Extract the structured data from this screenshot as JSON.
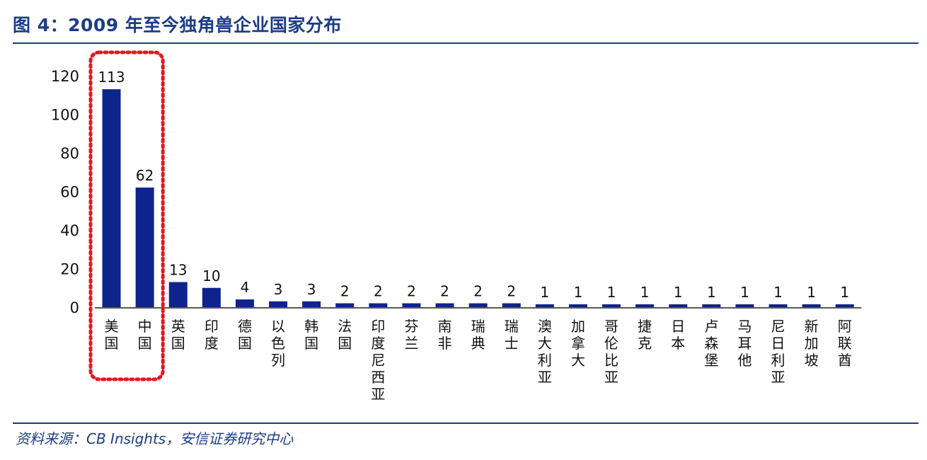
{
  "header": {
    "title": "图 4：2009 年至今独角兽企业国家分布"
  },
  "footer": {
    "source": "资料来源：CB Insights，安信证券研究中心"
  },
  "colors": {
    "bar": "#0f238c",
    "title": "#1c3c87",
    "highlight": "#e8161c"
  },
  "chart_data": {
    "type": "bar",
    "title": "",
    "xlabel": "",
    "ylabel": "",
    "ylim": [
      0,
      120
    ],
    "yticks": [
      0,
      20,
      40,
      60,
      80,
      100,
      120
    ],
    "grid": false,
    "categories": [
      "美国",
      "中国",
      "英国",
      "印度",
      "德国",
      "以色列",
      "韩国",
      "法国",
      "印度尼西亚",
      "芬兰",
      "南非",
      "瑞典",
      "瑞士",
      "澳大利亚",
      "加拿大",
      "哥伦比亚",
      "捷克",
      "日本",
      "卢森堡",
      "马耳他",
      "尼日利亚",
      "新加坡",
      "阿联酋"
    ],
    "values": [
      113,
      62,
      13,
      10,
      4,
      3,
      3,
      2,
      2,
      2,
      2,
      2,
      2,
      1,
      1,
      1,
      1,
      1,
      1,
      1,
      1,
      1,
      1
    ],
    "highlight": {
      "categories": [
        "美国",
        "中国"
      ],
      "style": "red dotted box"
    }
  }
}
